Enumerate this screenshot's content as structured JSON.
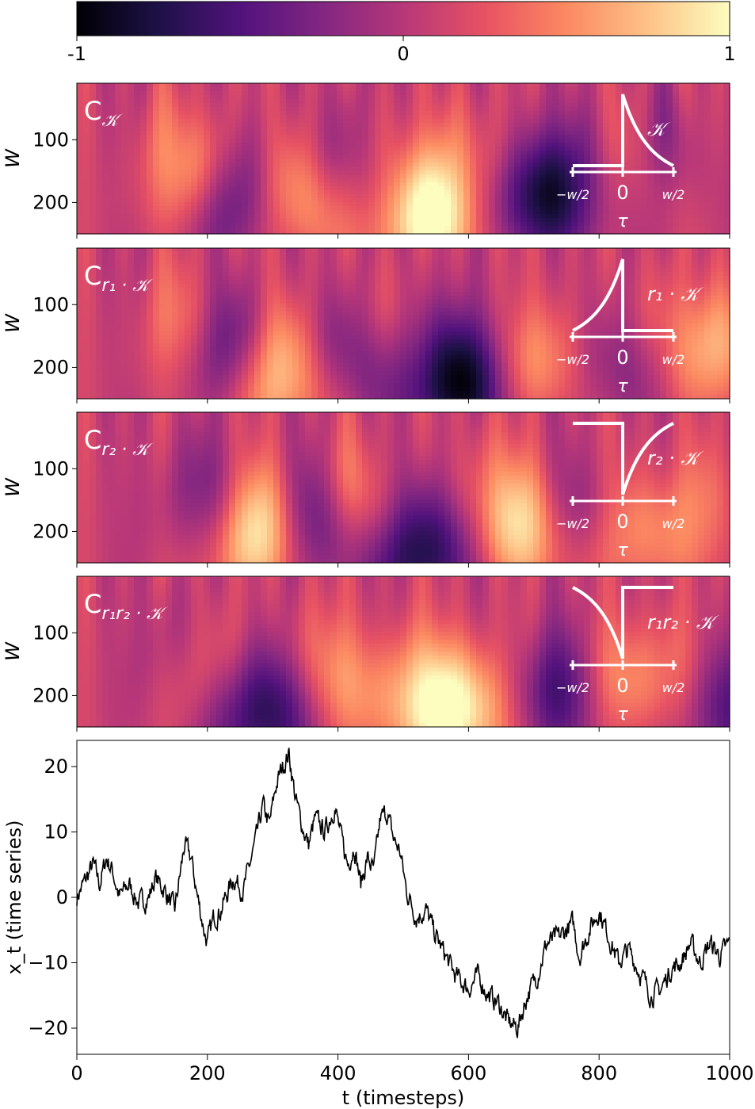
{
  "colorbar": {
    "colormap": "magma",
    "ticks": [
      {
        "value": -1,
        "label": "-1"
      },
      {
        "value": 0,
        "label": "0"
      },
      {
        "value": 1,
        "label": "1"
      }
    ],
    "stops": [
      "#000004",
      "#1d1147",
      "#51127c",
      "#822681",
      "#b73779",
      "#e75263",
      "#fc8961",
      "#fec287",
      "#fcfdbf"
    ]
  },
  "panels": [
    {
      "title_base": "C",
      "title_sub": "𝒦",
      "kernel_label": "𝒦",
      "kernel": "causal-decay",
      "ylabel": "W",
      "yticks": [
        100,
        200
      ],
      "centers": [
        [
          250,
          200,
          -1.0
        ],
        [
          330,
          200,
          0.75
        ],
        [
          215,
          160,
          0.55
        ],
        [
          545,
          230,
          1.0
        ],
        [
          700,
          190,
          -0.85
        ],
        [
          770,
          150,
          -0.5
        ],
        [
          140,
          110,
          0.35
        ],
        [
          590,
          120,
          0.35
        ],
        [
          410,
          120,
          -0.35
        ],
        [
          850,
          130,
          0.3
        ],
        [
          900,
          100,
          -0.35
        ],
        [
          470,
          150,
          0.3
        ]
      ]
    },
    {
      "title_base": "C",
      "title_sub": "r₁ · 𝒦",
      "kernel_label": "r₁ · 𝒦",
      "kernel": "anticausal-rise",
      "ylabel": "W",
      "yticks": [
        100,
        200
      ],
      "centers": [
        [
          315,
          210,
          1.0
        ],
        [
          590,
          230,
          -1.0
        ],
        [
          250,
          170,
          -0.6
        ],
        [
          410,
          180,
          -0.55
        ],
        [
          720,
          200,
          0.55
        ],
        [
          820,
          200,
          -0.45
        ],
        [
          990,
          160,
          0.65
        ],
        [
          150,
          110,
          0.3
        ],
        [
          480,
          130,
          0.3
        ],
        [
          530,
          160,
          -0.45
        ],
        [
          890,
          120,
          0.3
        ]
      ]
    },
    {
      "title_base": "C",
      "title_sub": "r₂ · 𝒦",
      "kernel_label": "r₂ · 𝒦",
      "kernel": "anticausal-dip",
      "ylabel": "W",
      "yticks": [
        100,
        200
      ],
      "centers": [
        [
          285,
          210,
          1.0
        ],
        [
          535,
          230,
          -1.0
        ],
        [
          365,
          200,
          -0.75
        ],
        [
          690,
          200,
          0.8
        ],
        [
          180,
          120,
          -0.35
        ],
        [
          420,
          140,
          0.4
        ],
        [
          630,
          120,
          0.35
        ],
        [
          860,
          200,
          0.5
        ],
        [
          760,
          180,
          -0.35
        ],
        [
          960,
          150,
          0.35
        ]
      ]
    },
    {
      "title_base": "C",
      "title_sub": "r₁r₂ · 𝒦",
      "kernel_label": "r₁r₂ · 𝒦",
      "kernel": "causal-dip",
      "ylabel": "W",
      "yticks": [
        100,
        200
      ],
      "centers": [
        [
          285,
          220,
          -1.0
        ],
        [
          590,
          220,
          0.95
        ],
        [
          520,
          180,
          0.55
        ],
        [
          430,
          180,
          0.35
        ],
        [
          740,
          200,
          -0.7
        ],
        [
          995,
          220,
          -0.6
        ],
        [
          210,
          150,
          0.3
        ],
        [
          360,
          130,
          0.3
        ],
        [
          830,
          180,
          0.4
        ],
        [
          900,
          150,
          0.3
        ],
        [
          150,
          110,
          -0.2
        ]
      ]
    }
  ],
  "inset_axis": {
    "tick_labels": [
      "−w/2",
      "0",
      "w/2"
    ],
    "label": "τ"
  },
  "chart_data": {
    "type": "line",
    "title": "",
    "xlabel": "t (timesteps)",
    "ylabel": "x_t (time series)",
    "xlim": [
      0,
      1000
    ],
    "ylim": [
      -24,
      24
    ],
    "xticks": [
      0,
      200,
      400,
      600,
      800,
      1000
    ],
    "yticks": [
      -20,
      -10,
      0,
      10,
      20
    ],
    "grid": false,
    "series": [
      {
        "color": "#000000",
        "keypoints": [
          [
            0,
            0
          ],
          [
            15,
            3
          ],
          [
            25,
            5
          ],
          [
            35,
            2
          ],
          [
            45,
            6
          ],
          [
            55,
            4
          ],
          [
            65,
            0
          ],
          [
            80,
            2
          ],
          [
            95,
            -1
          ],
          [
            110,
            0
          ],
          [
            120,
            3
          ],
          [
            135,
            1
          ],
          [
            150,
            -2
          ],
          [
            165,
            8
          ],
          [
            175,
            6
          ],
          [
            185,
            0
          ],
          [
            195,
            -5
          ],
          [
            200,
            -7
          ],
          [
            210,
            -3
          ],
          [
            220,
            -2
          ],
          [
            240,
            3
          ],
          [
            255,
            1
          ],
          [
            265,
            5
          ],
          [
            275,
            9
          ],
          [
            285,
            14
          ],
          [
            295,
            11
          ],
          [
            305,
            17
          ],
          [
            315,
            20
          ],
          [
            325,
            22
          ],
          [
            335,
            15
          ],
          [
            345,
            11
          ],
          [
            355,
            8
          ],
          [
            365,
            12
          ],
          [
            380,
            10
          ],
          [
            395,
            14
          ],
          [
            405,
            9
          ],
          [
            415,
            5
          ],
          [
            425,
            8
          ],
          [
            435,
            2
          ],
          [
            445,
            6
          ],
          [
            455,
            4
          ],
          [
            465,
            12
          ],
          [
            475,
            13
          ],
          [
            485,
            9
          ],
          [
            495,
            7
          ],
          [
            505,
            1
          ],
          [
            520,
            -3
          ],
          [
            535,
            -2
          ],
          [
            550,
            -6
          ],
          [
            565,
            -9
          ],
          [
            580,
            -12
          ],
          [
            600,
            -14
          ],
          [
            615,
            -12
          ],
          [
            630,
            -15
          ],
          [
            645,
            -16
          ],
          [
            660,
            -19
          ],
          [
            675,
            -20
          ],
          [
            690,
            -15
          ],
          [
            705,
            -12
          ],
          [
            720,
            -7
          ],
          [
            740,
            -6
          ],
          [
            760,
            -4
          ],
          [
            770,
            -9
          ],
          [
            785,
            -5
          ],
          [
            800,
            -2
          ],
          [
            815,
            -6
          ],
          [
            830,
            -10
          ],
          [
            845,
            -8
          ],
          [
            860,
            -11
          ],
          [
            880,
            -15
          ],
          [
            895,
            -14
          ],
          [
            910,
            -11
          ],
          [
            925,
            -10
          ],
          [
            940,
            -7
          ],
          [
            955,
            -10
          ],
          [
            970,
            -7
          ],
          [
            985,
            -9
          ],
          [
            1000,
            -7
          ]
        ]
      }
    ]
  }
}
